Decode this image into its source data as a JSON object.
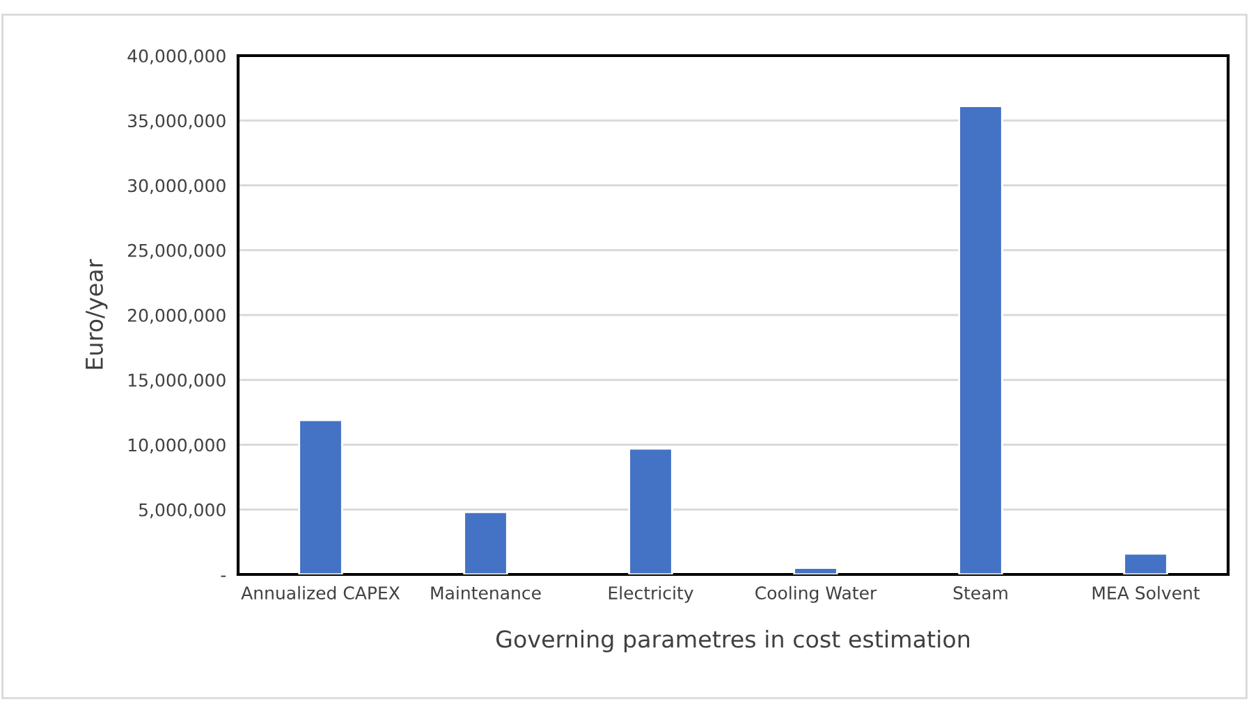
{
  "chart_data": {
    "type": "bar",
    "xlabel": "Governing parametres in cost estimation",
    "ylabel": "Euro/year",
    "categories": [
      "Annualized CAPEX",
      "Maintenance",
      "Electricity",
      "Cooling Water",
      "Steam",
      "MEA Solvent"
    ],
    "values": [
      11900000,
      4800000,
      9700000,
      500000,
      36100000,
      1600000
    ],
    "color": "#4472c4",
    "ylim": [
      0,
      40000000
    ],
    "yticks": [
      {
        "value": 0,
        "label": "-"
      },
      {
        "value": 5000000,
        "label": "5,000,000"
      },
      {
        "value": 10000000,
        "label": "10,000,000"
      },
      {
        "value": 15000000,
        "label": "15,000,000"
      },
      {
        "value": 20000000,
        "label": "20,000,000"
      },
      {
        "value": 25000000,
        "label": "25,000,000"
      },
      {
        "value": 30000000,
        "label": "30,000,000"
      },
      {
        "value": 35000000,
        "label": "35,000,000"
      },
      {
        "value": 40000000,
        "label": "40,000,000"
      }
    ],
    "grid": "y"
  }
}
